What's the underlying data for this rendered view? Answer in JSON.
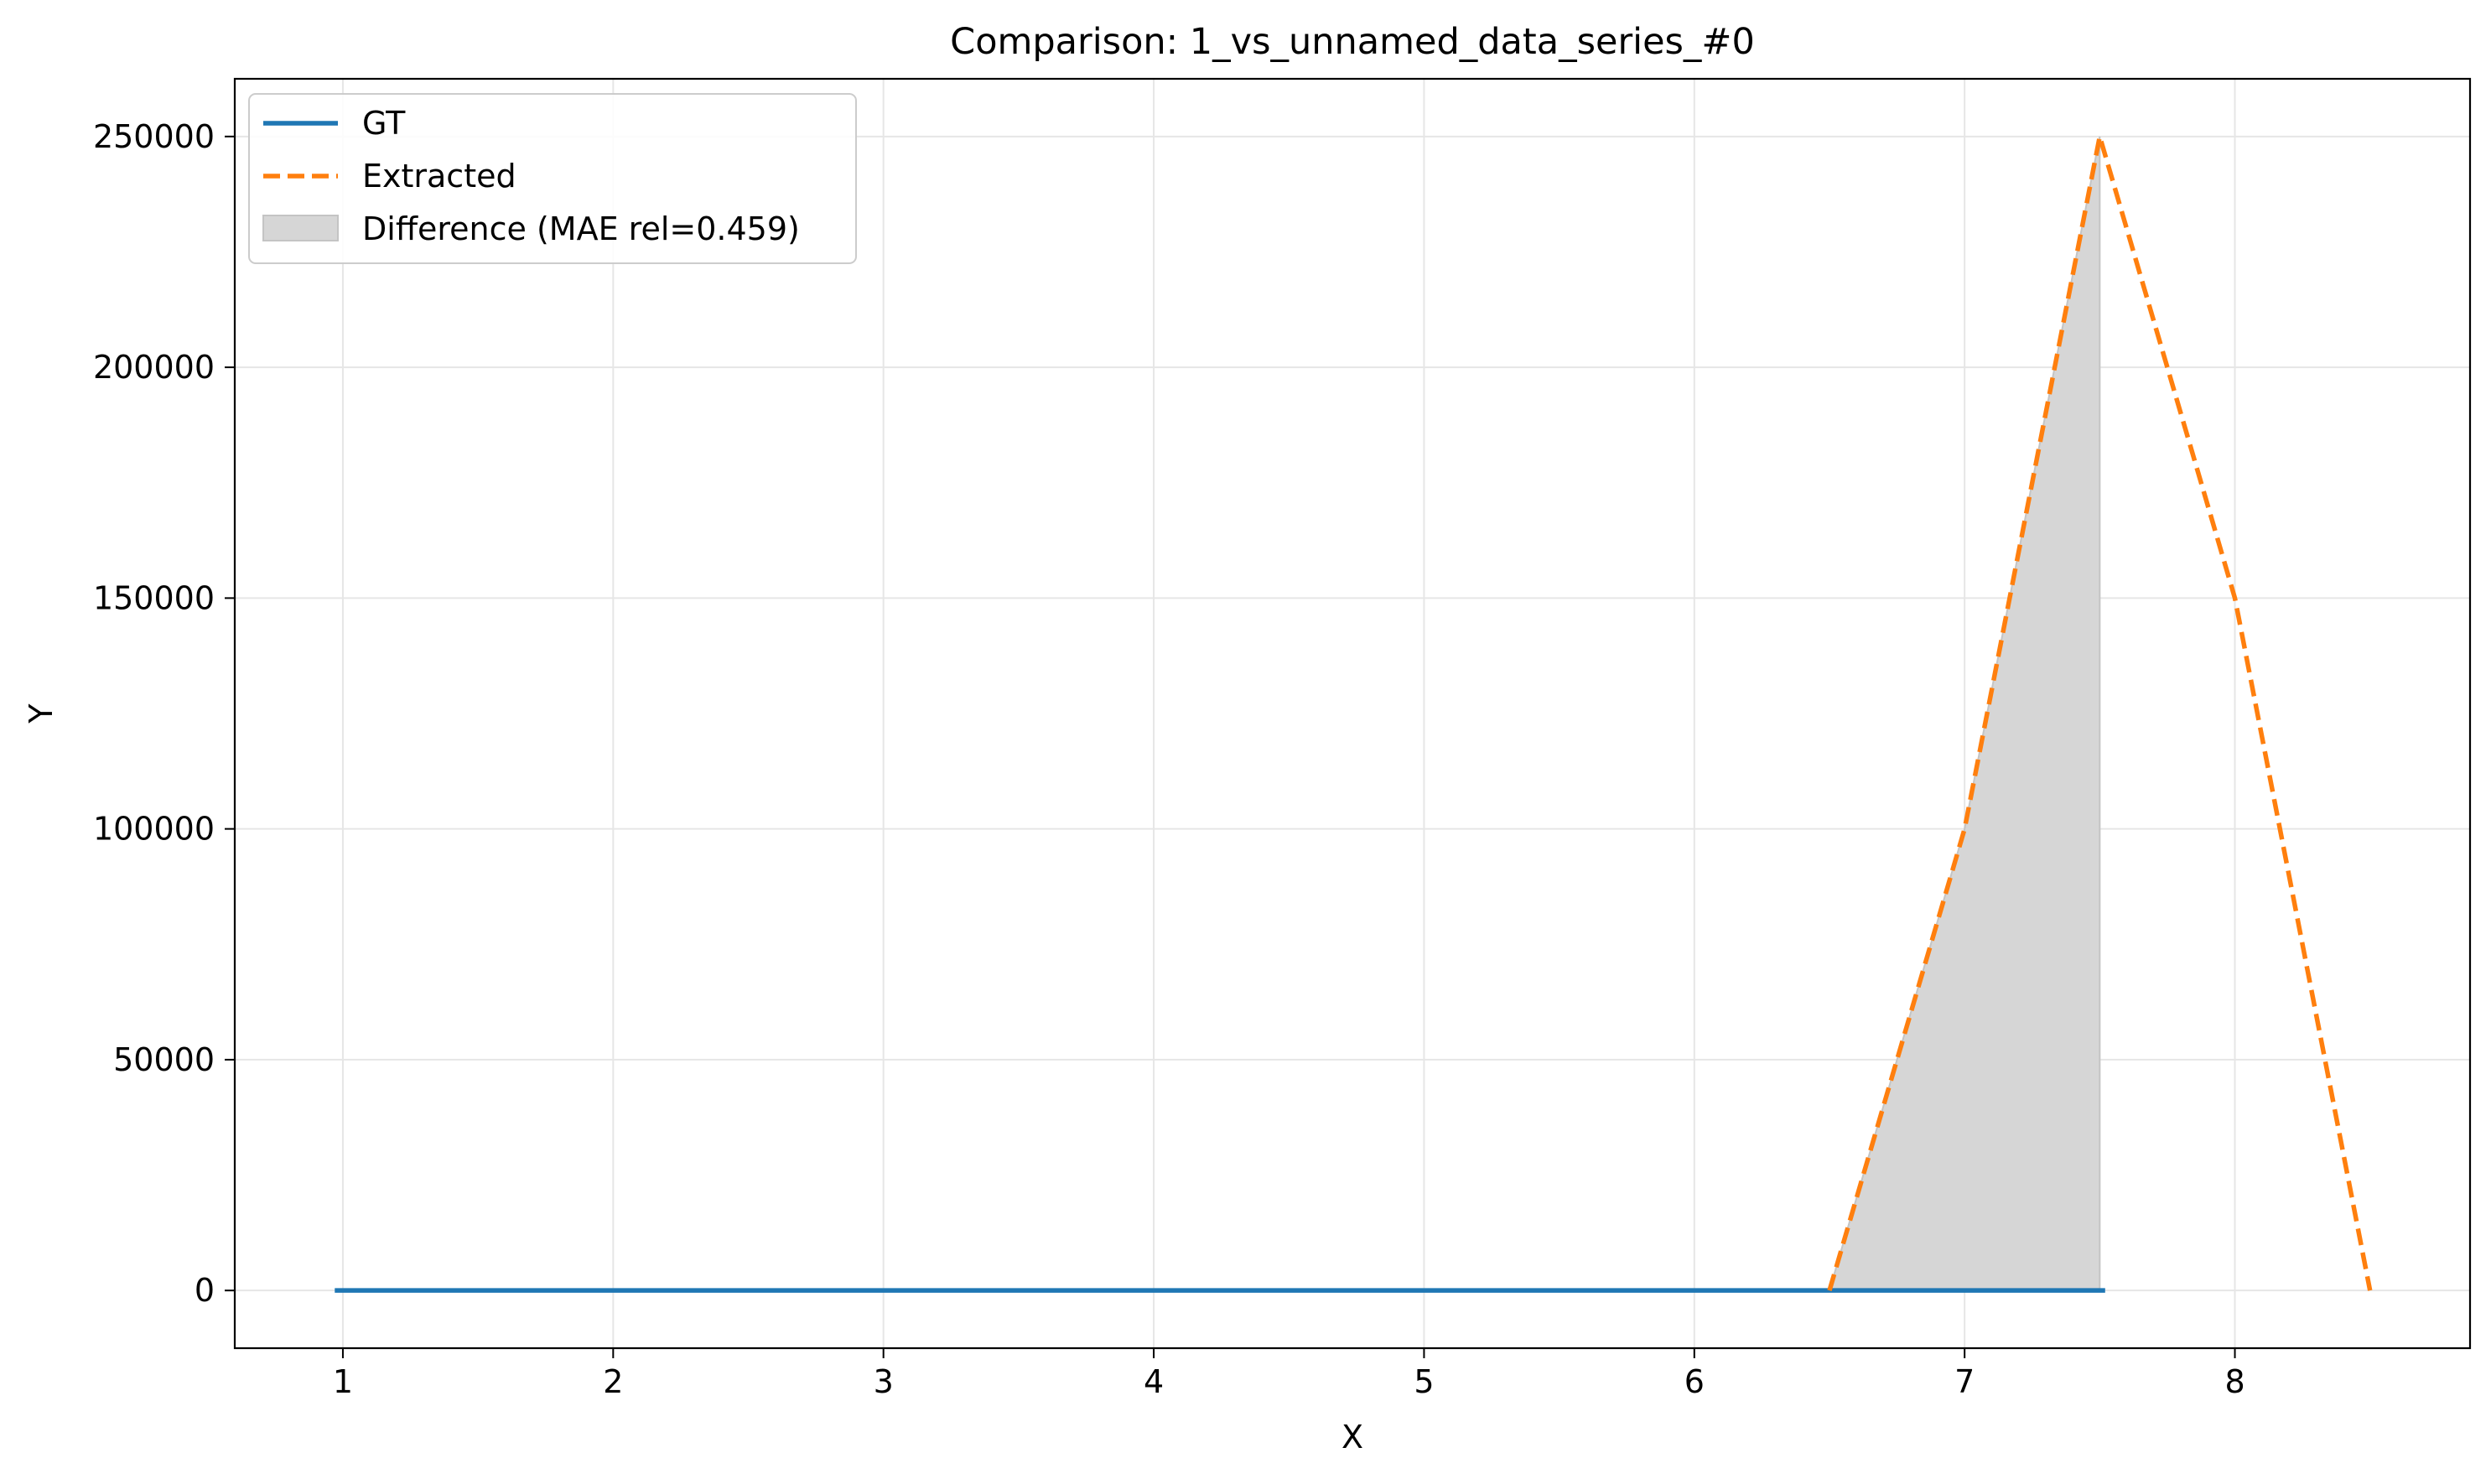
{
  "chart_data": {
    "type": "line",
    "title": "Comparison: 1_vs_unnamed_data_series_#0",
    "xlabel": "X",
    "ylabel": "Y",
    "xlim": [
      0.6,
      8.87
    ],
    "ylim": [
      -12500,
      262500
    ],
    "xticks": [
      1,
      2,
      3,
      4,
      5,
      6,
      7,
      8
    ],
    "yticks": [
      0,
      50000,
      100000,
      150000,
      200000,
      250000
    ],
    "grid": true,
    "legend_position": "top-left",
    "series": [
      {
        "name": "GT",
        "style": "solid",
        "color": "#1f77b4",
        "x": [
          0.97,
          7.52
        ],
        "y": [
          0,
          0
        ]
      },
      {
        "name": "Extracted",
        "style": "dashed",
        "color": "#ff7f0e",
        "x": [
          6.5,
          7.0,
          7.5,
          8.0,
          8.5
        ],
        "y": [
          0,
          100000,
          250000,
          150000,
          0
        ]
      }
    ],
    "fill": {
      "name": "Difference (MAE rel=0.459)",
      "color": "#d6d6d6",
      "x": [
        6.5,
        7.0,
        7.5
      ],
      "y_upper": [
        0,
        100000,
        250000
      ],
      "y_lower": [
        0,
        0,
        0
      ]
    }
  }
}
